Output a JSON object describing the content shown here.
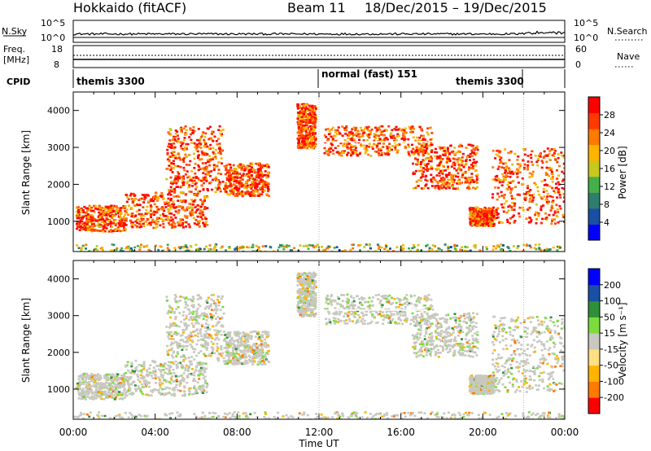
{
  "header": {
    "station": "Hokkaido (fitACF)",
    "beam": "Beam 11",
    "date_range": "18/Dec/2015 – 19/Dec/2015"
  },
  "noise_panel": {
    "left_label": "N.Sky",
    "right_label": "N.Search",
    "left_ticks": [
      "10^5",
      "10^0"
    ],
    "right_ticks": [
      "10^5",
      "10^0"
    ]
  },
  "freq_panel": {
    "left_label_1": "Freq.",
    "left_label_2": "[MHz]",
    "right_label": "Nave",
    "left_ticks": [
      "18",
      "8"
    ],
    "right_ticks": [
      "60",
      "0"
    ]
  },
  "cpid_panel": {
    "label": "CPID",
    "segments": [
      {
        "label": "themis 3300",
        "start_hour": 0,
        "end_hour": 12
      },
      {
        "label": "normal (fast) 151",
        "start_hour": 12,
        "end_hour": 22
      },
      {
        "label": "themis 3300",
        "start_hour": 22,
        "end_hour": 24
      }
    ]
  },
  "power_panel": {
    "ylabel": "Slant Range [km]",
    "y_ticks": [
      "1000",
      "2000",
      "3000",
      "4000"
    ],
    "colorbar_label": "Power [dB]",
    "colorbar_ticks": [
      "4",
      "8",
      "12",
      "16",
      "20",
      "24",
      "28"
    ],
    "colors": [
      "#0000ff",
      "#1a4fa6",
      "#2f7d6e",
      "#45b04a",
      "#c8c81e",
      "#ffb400",
      "#ff7a00",
      "#ff3a00",
      "#ff0000"
    ]
  },
  "velocity_panel": {
    "ylabel": "Slant Range [km]",
    "y_ticks": [
      "1000",
      "2000",
      "3000",
      "4000"
    ],
    "colorbar_label": "Velocity [m s⁻¹]",
    "colorbar_ticks": [
      "-200",
      "-100",
      "-50",
      "-15",
      "15",
      "50",
      "100",
      "200"
    ],
    "colors": [
      "#ff0000",
      "#ff7a00",
      "#ffb400",
      "#ffe080",
      "#c8c8c0",
      "#7ddc3c",
      "#2f8f3a",
      "#1a4fa6",
      "#0000ff"
    ]
  },
  "x_axis": {
    "label": "Time UT",
    "ticks": [
      "00:00",
      "04:00",
      "08:00",
      "12:00",
      "16:00",
      "20:00",
      "00:00"
    ]
  },
  "chart_data": {
    "type": "heatmap",
    "x_range_hours": [
      0,
      24
    ],
    "y_range_km": [
      180,
      4500
    ],
    "power_colorbar_range_db": [
      0,
      30
    ],
    "velocity_colorbar_range": [
      -250,
      250
    ],
    "echo_regions": [
      {
        "t0": 0.1,
        "t1": 2.5,
        "r0": 750,
        "r1": 1450
      },
      {
        "t0": 2.5,
        "t1": 6.5,
        "r0": 850,
        "r1": 1800
      },
      {
        "t0": 4.5,
        "t1": 7.3,
        "r0": 1800,
        "r1": 3600
      },
      {
        "t0": 7.3,
        "t1": 9.5,
        "r0": 1700,
        "r1": 2600
      },
      {
        "t0": 10.9,
        "t1": 11.8,
        "r0": 3000,
        "r1": 4200
      },
      {
        "t0": 12.2,
        "t1": 17.5,
        "r0": 2800,
        "r1": 3600
      },
      {
        "t0": 16.5,
        "t1": 19.7,
        "r0": 1900,
        "r1": 3100
      },
      {
        "t0": 19.3,
        "t1": 20.5,
        "r0": 900,
        "r1": 1400
      },
      {
        "t0": 20.4,
        "t1": 24.0,
        "r0": 950,
        "r1": 3000
      },
      {
        "t0": 0.0,
        "t1": 24.0,
        "r0": 200,
        "r1": 400
      }
    ]
  }
}
